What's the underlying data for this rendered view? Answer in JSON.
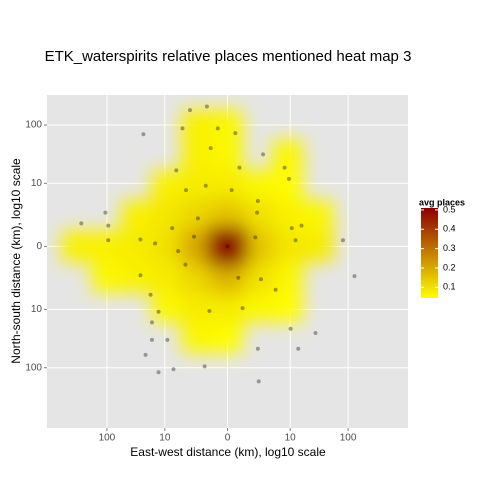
{
  "chart_data": {
    "type": "heatmap_scatter",
    "title": "ETK_waterspirits relative places mentioned heat map 3",
    "x_label": "East-west distance (km), log10 scale",
    "y_label": "North-south distance (km), log10 scale",
    "xlim": [
      -999,
      999
    ],
    "ylim": [
      -999,
      315
    ],
    "xticks": [
      {
        "value": -100,
        "label": "100"
      },
      {
        "value": -10,
        "label": "10"
      },
      0,
      10,
      100
    ],
    "yticks": [
      {
        "value": -100,
        "label": "100"
      },
      {
        "value": -10,
        "label": "10"
      },
      0,
      10,
      100
    ],
    "grid": true,
    "heatmap": {
      "x": [
        -999,
        -315,
        -99,
        -31,
        -9,
        -2.2,
        0,
        2.2,
        9,
        31,
        99,
        315,
        999
      ],
      "y": [
        315,
        99,
        31,
        9,
        2.2,
        0,
        -2.2,
        -9,
        -31,
        -99,
        -315,
        -999
      ],
      "values": [
        [
          0,
          0,
          0,
          0,
          0,
          0,
          0,
          0,
          0,
          0,
          0,
          0,
          0
        ],
        [
          0,
          0,
          0,
          0,
          0,
          0.07,
          0.06,
          0,
          0,
          0,
          0,
          0,
          0
        ],
        [
          0,
          0,
          0,
          0,
          0,
          0.07,
          0.06,
          0,
          0.06,
          0,
          0,
          0,
          0
        ],
        [
          0,
          0,
          0,
          0,
          0.07,
          0.08,
          0.08,
          0.06,
          0.05,
          0,
          0,
          0,
          0
        ],
        [
          0,
          0,
          0,
          0.07,
          0.09,
          0.12,
          0.15,
          0.1,
          0.07,
          0.06,
          0,
          0,
          0
        ],
        [
          0,
          0.07,
          0.07,
          0.08,
          0.1,
          0.2,
          0.5,
          0.15,
          0.09,
          0.08,
          0,
          0,
          0
        ],
        [
          0,
          0,
          0.06,
          0.07,
          0.08,
          0.12,
          0.18,
          0.1,
          0.06,
          0,
          0,
          0,
          0
        ],
        [
          0,
          0,
          0,
          0,
          0.06,
          0.08,
          0.08,
          0.06,
          0.05,
          0,
          0,
          0,
          0
        ],
        [
          0,
          0,
          0,
          0,
          0,
          0.06,
          0.05,
          0,
          0,
          0,
          0,
          0,
          0
        ],
        [
          0,
          0,
          0,
          0,
          0,
          0,
          0,
          0,
          0,
          0,
          0,
          0,
          0
        ],
        [
          0,
          0,
          0,
          0,
          0,
          0,
          0,
          0,
          0,
          0,
          0,
          0,
          0
        ],
        [
          0,
          0,
          0,
          0,
          0,
          0,
          0,
          0,
          0,
          0,
          0,
          0,
          0
        ]
      ]
    },
    "fill_low": "#ffff00",
    "fill_high": "#8b0000",
    "points": {
      "color": "#000000",
      "x": [
        -3.2,
        -1.2,
        -0.45,
        0.35,
        -4.6,
        -24,
        -0.9,
        0.58,
        2.9,
        7.9,
        9.5,
        -6.1,
        -3.9,
        -1.3,
        0.17,
        2.2,
        -106,
        -268,
        -95,
        -95,
        -27,
        -15,
        -7.3,
        -2.1,
        -2.6,
        -5.6,
        -4.0,
        0,
        2.1,
        1.9,
        10.7,
        12.5,
        16,
        82,
        128,
        0.51,
        2.6,
        5.3,
        -27,
        -18,
        -1.0,
        0.78,
        -13,
        -17,
        -17,
        -9,
        -22,
        2.2,
        10.2,
        28,
        14,
        -6.9,
        -13,
        -1.4,
        2.3
      ],
      "y": [
        177,
        203,
        88,
        73,
        88,
        70,
        41,
        19,
        32,
        19,
        12,
        17,
        7.5,
        9,
        7.5,
        4.6,
        2.6,
        1.4,
        1.2,
        0.26,
        0.3,
        0.12,
        1.0,
        1.9,
        0.45,
        -0.2,
        -1.0,
        0,
        2.6,
        0.41,
        1.0,
        0.26,
        1.2,
        0.26,
        -2.1,
        -2.3,
        -2.5,
        -4.2,
        -2.0,
        -5.3,
        -10.7,
        -9.5,
        -11,
        -17,
        -34,
        -34,
        -61,
        -48,
        -22,
        -26,
        -48,
        -106,
        -119,
        -95,
        -169
      ]
    },
    "legend": {
      "title": "avg places",
      "limits": [
        0.045,
        0.51
      ],
      "ticks": [
        0.1,
        0.2,
        0.3,
        0.4,
        0.5
      ]
    }
  }
}
